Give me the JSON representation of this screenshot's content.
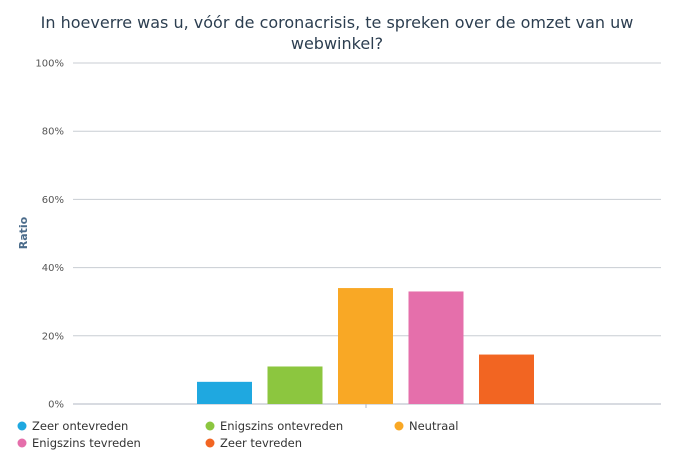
{
  "chart_data": {
    "type": "bar",
    "title_lines": [
      "In hoeverre was u, vóór de coronacrisis, te spreken over de omzet van uw",
      "webwinkel?"
    ],
    "ylabel": "Ratio",
    "ylim": [
      0,
      100
    ],
    "yticks": [
      "0%",
      "20%",
      "40%",
      "60%",
      "80%",
      "100%"
    ],
    "grid": true,
    "legend_position": "bottom",
    "series": [
      {
        "name": "Zeer ontevreden",
        "value": 6.5,
        "color": "#1fa8e0"
      },
      {
        "name": "Enigszins ontevreden",
        "value": 11,
        "color": "#8cc63f"
      },
      {
        "name": "Neutraal",
        "value": 34,
        "color": "#f9a825"
      },
      {
        "name": "Enigszins tevreden",
        "value": 33,
        "color": "#e56fab"
      },
      {
        "name": "Zeer tevreden",
        "value": 14.5,
        "color": "#f26522"
      }
    ]
  }
}
